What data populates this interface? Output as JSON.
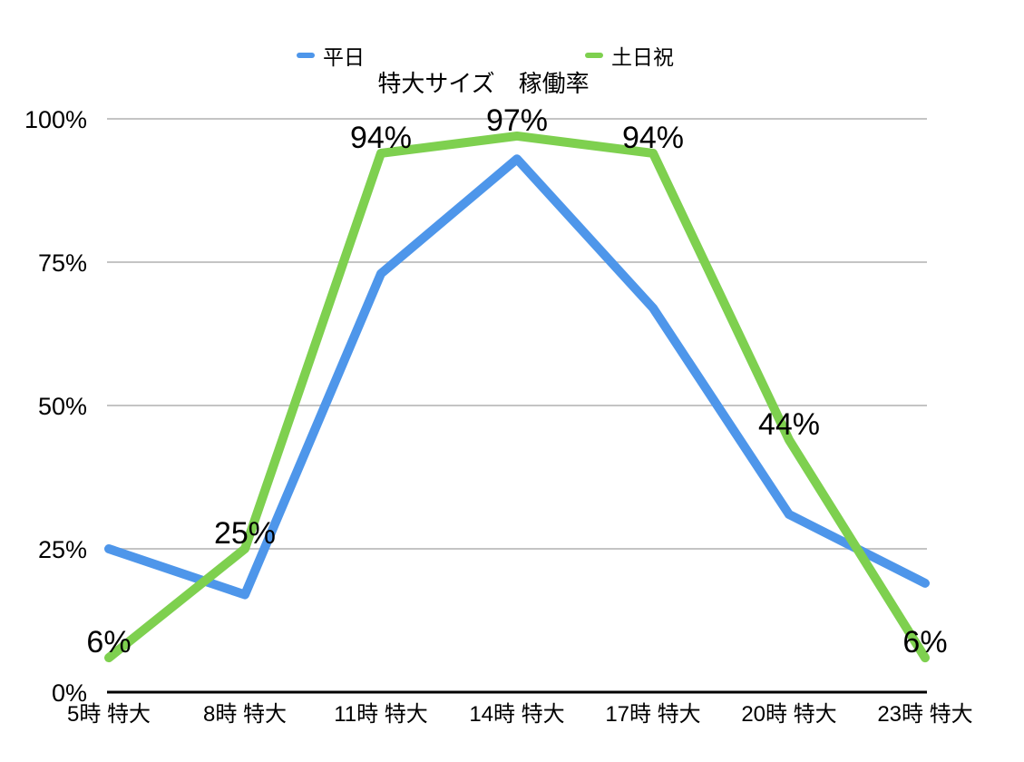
{
  "chart_data": {
    "type": "line",
    "title": "特大サイズ　稼働率",
    "categories": [
      "5時 特大",
      "8時 特大",
      "11時 特大",
      "14時 特大",
      "17時 特大",
      "20時 特大",
      "23時 特大"
    ],
    "series": [
      {
        "name": "平日",
        "color": "#4e96ea",
        "values": [
          25,
          17,
          73,
          93,
          67,
          31,
          19
        ],
        "data_labels": null
      },
      {
        "name": "土日祝",
        "color": "#7ed04f",
        "values": [
          6,
          25,
          94,
          97,
          94,
          44,
          6
        ],
        "data_labels": [
          "6%",
          "25%",
          "94%",
          "97%",
          "94%",
          "44%",
          "6%"
        ]
      }
    ],
    "y_ticks": [
      "0%",
      "25%",
      "50%",
      "75%",
      "100%"
    ],
    "y_tick_values": [
      0,
      25,
      50,
      75,
      100
    ],
    "ylim": [
      0,
      100
    ],
    "grid": true,
    "legend_position": "top",
    "colors": {
      "grid": "#c4c4c4",
      "axis": "#000000",
      "text": "#000000",
      "background": "#ffffff"
    }
  }
}
